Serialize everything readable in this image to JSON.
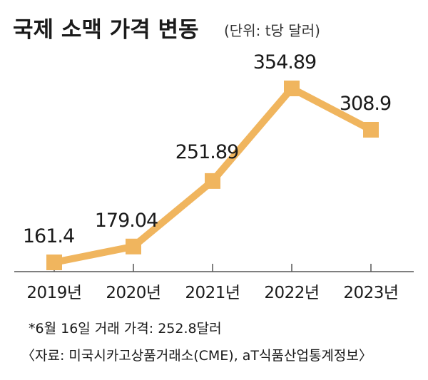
{
  "chart_data": {
    "type": "line",
    "title": "국제 소맥 가격 변동",
    "unit": "(단위: t당 달러)",
    "categories": [
      "2019년",
      "2020년",
      "2021년",
      "2022년",
      "2023년"
    ],
    "series": [
      {
        "values": [
          161.4,
          179.04,
          251.89,
          354.89,
          308.9
        ],
        "labels": [
          "161.4",
          "179.04",
          "251.89",
          "354.89",
          "308.9"
        ]
      }
    ],
    "line_color": "#f0b55e",
    "axis_color": "#555555"
  },
  "notes": {
    "footnote": "*6월 16일 거래 가격: 252.8달러",
    "source": "〈자료: 미국시카고상품거래소(CME), aT식품산업통계정보〉"
  }
}
